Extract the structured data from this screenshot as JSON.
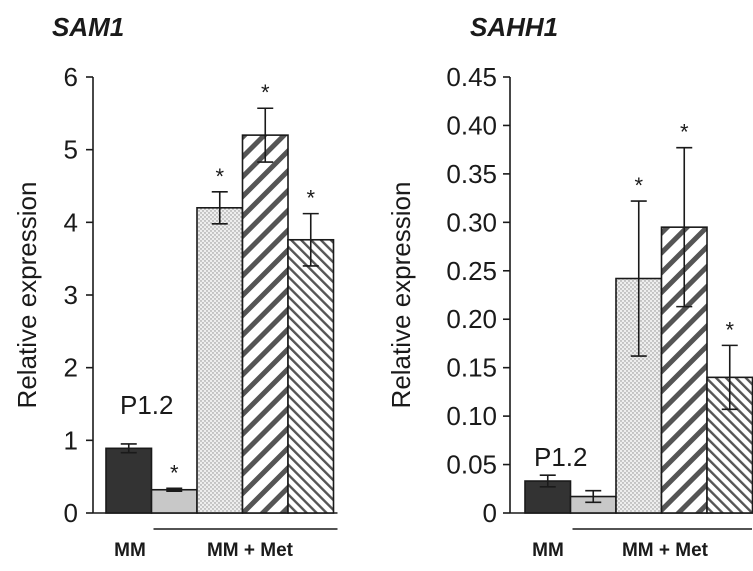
{
  "colors": {
    "dark": "#333333",
    "light": "#c8c8c8",
    "dotted": "#e6e6e6",
    "hatch_wide": "#555555",
    "hatch_narrow": "#555555",
    "stroke": "#1a1a1a"
  },
  "chart_data": [
    {
      "type": "bar",
      "title": "SAM1",
      "ylabel": "Relative expression",
      "ylim": [
        0,
        6
      ],
      "yticks": [
        "0",
        "1",
        "2",
        "3",
        "4",
        "5",
        "6"
      ],
      "tick_values": [
        0,
        1,
        2,
        3,
        4,
        5,
        6
      ],
      "annotation": "P1.2",
      "groups": [
        {
          "label": "MM",
          "bars": [
            0
          ]
        },
        {
          "label": "MM + Met",
          "bars": [
            1,
            2,
            3,
            4
          ]
        }
      ],
      "bars": [
        {
          "value": 0.89,
          "err": 0.06,
          "star": "",
          "fill": "dark"
        },
        {
          "value": 0.32,
          "err": 0.02,
          "star": "*",
          "fill": "light"
        },
        {
          "value": 4.2,
          "err": 0.22,
          "star": "*",
          "fill": "dotted"
        },
        {
          "value": 5.2,
          "err": 0.37,
          "star": "*",
          "fill": "hatch_wide"
        },
        {
          "value": 3.76,
          "err": 0.36,
          "star": "*",
          "fill": "hatch_narrow"
        }
      ]
    },
    {
      "type": "bar",
      "title": "SAHH1",
      "ylabel": "Relative expression",
      "ylim": [
        0,
        0.45
      ],
      "yticks": [
        "0",
        "0.05",
        "0.10",
        "0.15",
        "0.20",
        "0.25",
        "0.30",
        "0.35",
        "0.40",
        "0.45"
      ],
      "tick_values": [
        0,
        0.05,
        0.1,
        0.15,
        0.2,
        0.25,
        0.3,
        0.35,
        0.4,
        0.45
      ],
      "annotation": "P1.2",
      "groups": [
        {
          "label": "MM",
          "bars": [
            0
          ]
        },
        {
          "label": "MM + Met",
          "bars": [
            1,
            2,
            3,
            4
          ]
        }
      ],
      "bars": [
        {
          "value": 0.033,
          "err": 0.006,
          "star": "",
          "fill": "dark"
        },
        {
          "value": 0.017,
          "err": 0.006,
          "star": "",
          "fill": "light"
        },
        {
          "value": 0.242,
          "err": 0.08,
          "star": "*",
          "fill": "dotted"
        },
        {
          "value": 0.295,
          "err": 0.082,
          "star": "*",
          "fill": "hatch_wide"
        },
        {
          "value": 0.14,
          "err": 0.033,
          "star": "*",
          "fill": "hatch_narrow"
        }
      ]
    }
  ]
}
